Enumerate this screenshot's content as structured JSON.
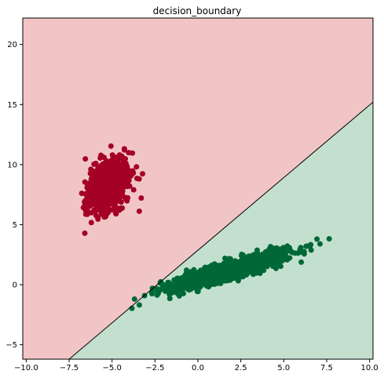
{
  "chart_data": {
    "type": "scatter",
    "title": "decision_boundary",
    "xlabel": "",
    "ylabel": "",
    "xlim": [
      -10.2,
      10.2
    ],
    "ylim": [
      -6.2,
      22.2
    ],
    "xticks": [
      -10.0,
      -7.5,
      -5.0,
      -2.5,
      0.0,
      2.5,
      5.0,
      7.5,
      10.0
    ],
    "xtick_labels": [
      "−10.0",
      "−7.5",
      "−5.0",
      "−2.5",
      "0.0",
      "2.5",
      "5.0",
      "7.5",
      "10.0"
    ],
    "yticks": [
      -5,
      0,
      5,
      10,
      15,
      20
    ],
    "ytick_labels": [
      "−5",
      "0",
      "5",
      "10",
      "15",
      "20"
    ],
    "grid": false,
    "legend": "none",
    "regions": [
      {
        "class": "red",
        "color": "#f1c5c6"
      },
      {
        "class": "green",
        "color": "#c3e0cf"
      }
    ],
    "decision_boundary": [
      [
        -7.5,
        -6.2
      ],
      [
        10.2,
        15.2
      ]
    ],
    "boundary_color": "#000000",
    "clusters": [
      {
        "class": "red",
        "color": "#a50026",
        "center": [
          -5.2,
          8.3
        ],
        "count": 1000,
        "slope": 3.6,
        "spread_along": 1.05,
        "spread_perp": 0.55
      },
      {
        "class": "green",
        "color": "#006837",
        "center": [
          1.8,
          1.2
        ],
        "count": 1000,
        "slope": 0.42,
        "spread_along": 2.0,
        "spread_perp": 0.35
      }
    ]
  }
}
